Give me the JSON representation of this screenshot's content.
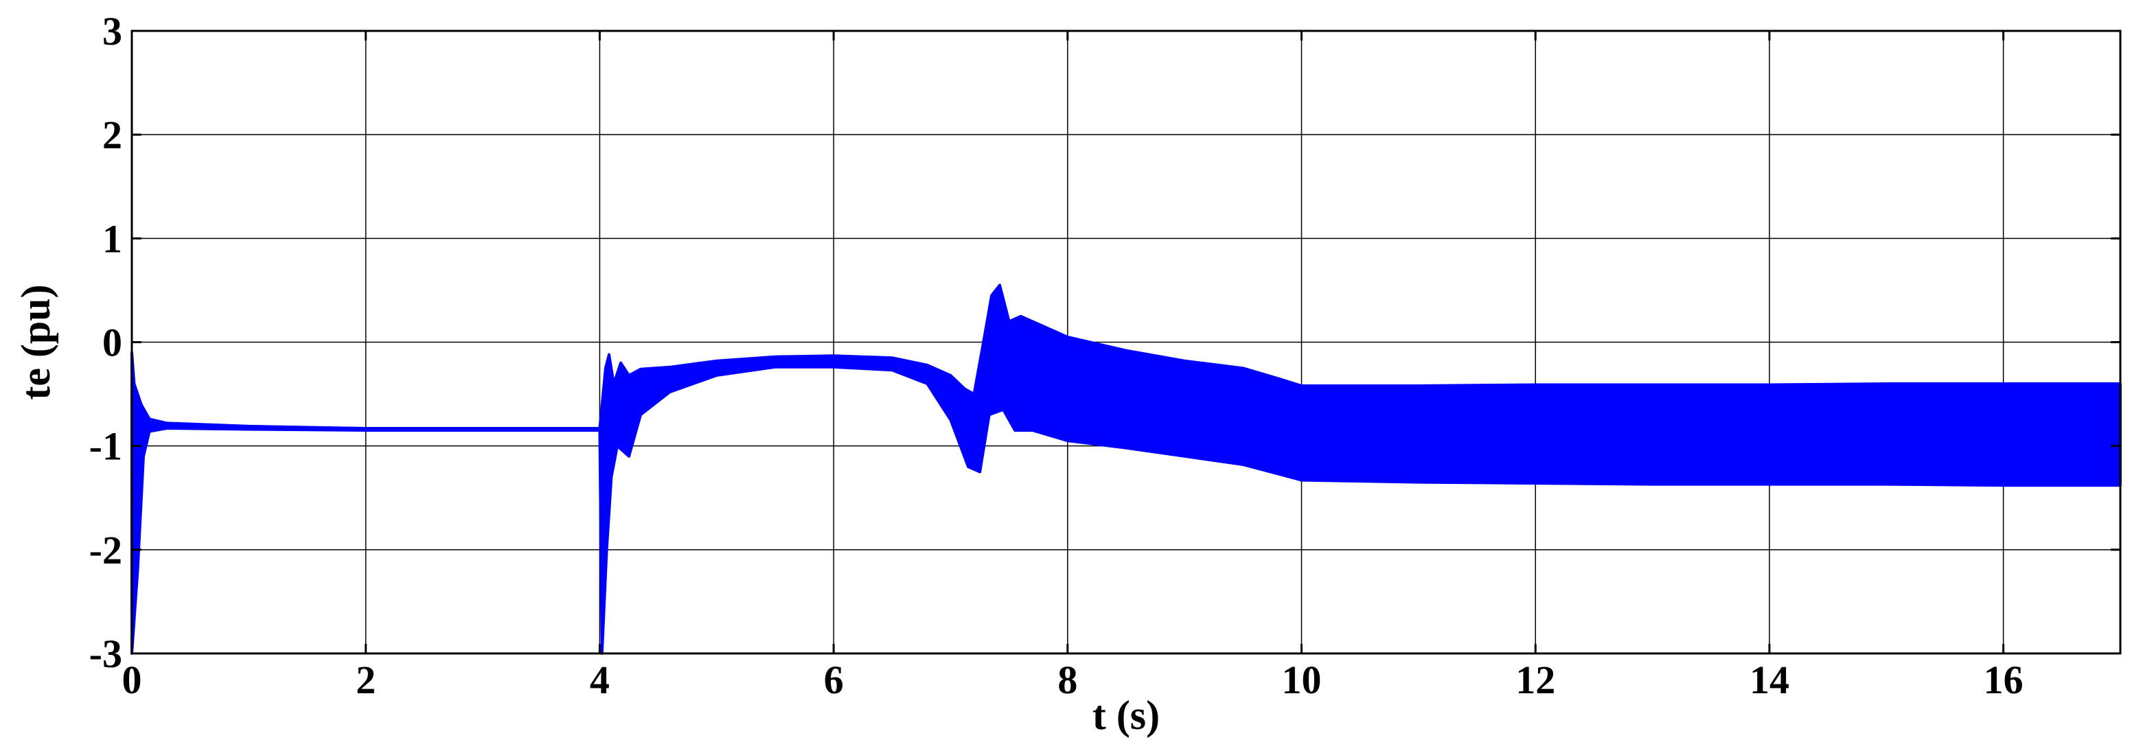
{
  "chart_data": {
    "type": "line",
    "xlabel": "t (s)",
    "ylabel": "te (pu)",
    "xlim": [
      0,
      17
    ],
    "ylim": [
      -3,
      3
    ],
    "xticks": [
      0,
      2,
      4,
      6,
      8,
      10,
      12,
      14,
      16
    ],
    "yticks": [
      -3,
      -2,
      -1,
      0,
      1,
      2,
      3
    ],
    "grid": true,
    "line_color": "#0000ff",
    "series": [
      {
        "name": "",
        "envelope_upper": [
          [
            0,
            -0.1
          ],
          [
            0.02,
            -0.4
          ],
          [
            0.08,
            -0.6
          ],
          [
            0.15,
            -0.74
          ],
          [
            0.3,
            -0.78
          ],
          [
            1,
            -0.81
          ],
          [
            2,
            -0.83
          ],
          [
            3.9,
            -0.83
          ],
          [
            4.0,
            -0.83
          ],
          [
            4.02,
            -0.6
          ],
          [
            4.05,
            -0.25
          ],
          [
            4.08,
            -0.12
          ],
          [
            4.12,
            -0.4
          ],
          [
            4.18,
            -0.2
          ],
          [
            4.25,
            -0.32
          ],
          [
            4.35,
            -0.26
          ],
          [
            4.6,
            -0.24
          ],
          [
            5.0,
            -0.18
          ],
          [
            5.5,
            -0.14
          ],
          [
            6.0,
            -0.13
          ],
          [
            6.5,
            -0.15
          ],
          [
            6.8,
            -0.22
          ],
          [
            7.0,
            -0.32
          ],
          [
            7.12,
            -0.45
          ],
          [
            7.2,
            -0.5
          ],
          [
            7.28,
            0.0
          ],
          [
            7.35,
            0.45
          ],
          [
            7.42,
            0.55
          ],
          [
            7.5,
            0.2
          ],
          [
            7.6,
            0.25
          ],
          [
            7.7,
            0.2
          ],
          [
            8.0,
            0.05
          ],
          [
            8.5,
            -0.08
          ],
          [
            9.0,
            -0.18
          ],
          [
            9.5,
            -0.25
          ],
          [
            9.8,
            -0.35
          ],
          [
            10.0,
            -0.42
          ],
          [
            11,
            -0.42
          ],
          [
            12,
            -0.41
          ],
          [
            13,
            -0.41
          ],
          [
            14,
            -0.41
          ],
          [
            15,
            -0.4
          ],
          [
            16,
            -0.4
          ],
          [
            17,
            -0.4
          ]
        ],
        "envelope_lower": [
          [
            0,
            -3.0
          ],
          [
            0.05,
            -2.2
          ],
          [
            0.1,
            -1.1
          ],
          [
            0.15,
            -0.86
          ],
          [
            0.3,
            -0.83
          ],
          [
            1,
            -0.84
          ],
          [
            2,
            -0.85
          ],
          [
            3.9,
            -0.85
          ],
          [
            4.0,
            -0.85
          ],
          [
            4.02,
            -3.0
          ],
          [
            4.06,
            -2.0
          ],
          [
            4.1,
            -1.3
          ],
          [
            4.15,
            -1.0
          ],
          [
            4.25,
            -1.1
          ],
          [
            4.35,
            -0.7
          ],
          [
            4.6,
            -0.48
          ],
          [
            5.0,
            -0.32
          ],
          [
            5.5,
            -0.24
          ],
          [
            6.0,
            -0.24
          ],
          [
            6.5,
            -0.27
          ],
          [
            6.8,
            -0.4
          ],
          [
            7.0,
            -0.75
          ],
          [
            7.15,
            -1.2
          ],
          [
            7.25,
            -1.25
          ],
          [
            7.33,
            -0.7
          ],
          [
            7.45,
            -0.65
          ],
          [
            7.55,
            -0.85
          ],
          [
            7.7,
            -0.85
          ],
          [
            8.0,
            -0.95
          ],
          [
            8.5,
            -1.02
          ],
          [
            9.0,
            -1.1
          ],
          [
            9.5,
            -1.18
          ],
          [
            9.8,
            -1.27
          ],
          [
            10.0,
            -1.33
          ],
          [
            11,
            -1.35
          ],
          [
            12,
            -1.36
          ],
          [
            13,
            -1.37
          ],
          [
            14,
            -1.37
          ],
          [
            15,
            -1.37
          ],
          [
            16,
            -1.38
          ],
          [
            17,
            -1.38
          ]
        ]
      }
    ]
  }
}
